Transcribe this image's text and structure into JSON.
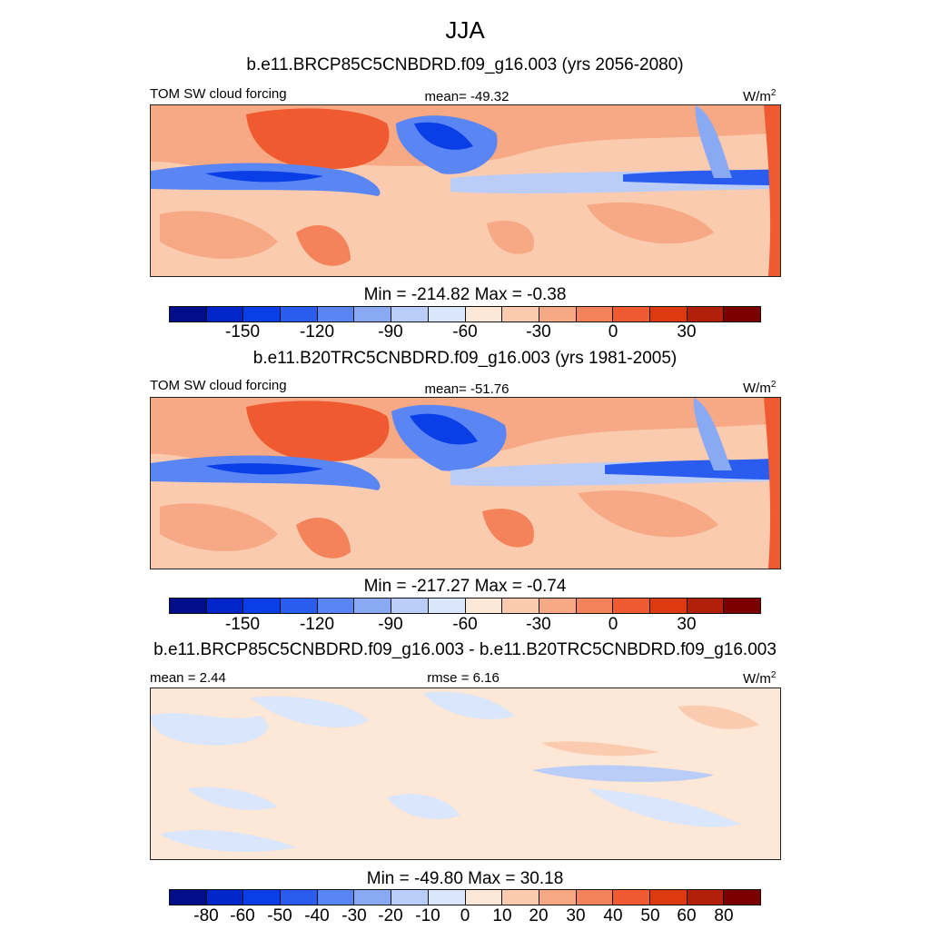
{
  "title": "JJA",
  "panels": [
    {
      "case": "b.e11.BRCP85C5CNBDRD.f09_g16.003 (yrs 2056-2080)",
      "left_label": "TOM SW cloud forcing",
      "center_label": "mean= -49.32",
      "units": "W/m",
      "units_sup": "2",
      "minmax": "Min = -214.82 Max =  -0.38",
      "ticks": [
        "-150",
        "-120",
        "-90",
        "-60",
        "-30",
        "0",
        "30"
      ]
    },
    {
      "case": "b.e11.B20TRC5CNBDRD.f09_g16.003 (yrs 1981-2005)",
      "left_label": "TOM SW cloud forcing",
      "center_label": "mean= -51.76",
      "units": "W/m",
      "units_sup": "2",
      "minmax": "Min = -217.27 Max =  -0.74",
      "ticks": [
        "-150",
        "-120",
        "-90",
        "-60",
        "-30",
        "0",
        "30"
      ]
    },
    {
      "case": "b.e11.BRCP85C5CNBDRD.f09_g16.003 - b.e11.B20TRC5CNBDRD.f09_g16.003",
      "left_label": "mean =   2.44",
      "center_label": "rmse =   6.16",
      "units": "W/m",
      "units_sup": "2",
      "minmax": "Min = -49.80 Max =  30.18",
      "ticks": [
        "-80",
        "-60",
        "-50",
        "-40",
        "-30",
        "-20",
        "-10",
        "0",
        "10",
        "20",
        "30",
        "40",
        "50",
        "60",
        "80"
      ]
    }
  ],
  "palette": [
    "#000e8c",
    "#0025c8",
    "#0a3ee6",
    "#2a5cf0",
    "#5a85f5",
    "#8aa9f5",
    "#b9cdf8",
    "#d9e6fb",
    "#fde7d6",
    "#fbcbb0",
    "#f7a884",
    "#f4825a",
    "#f05a30",
    "#dc3a10",
    "#b0200a",
    "#7d0000"
  ]
}
